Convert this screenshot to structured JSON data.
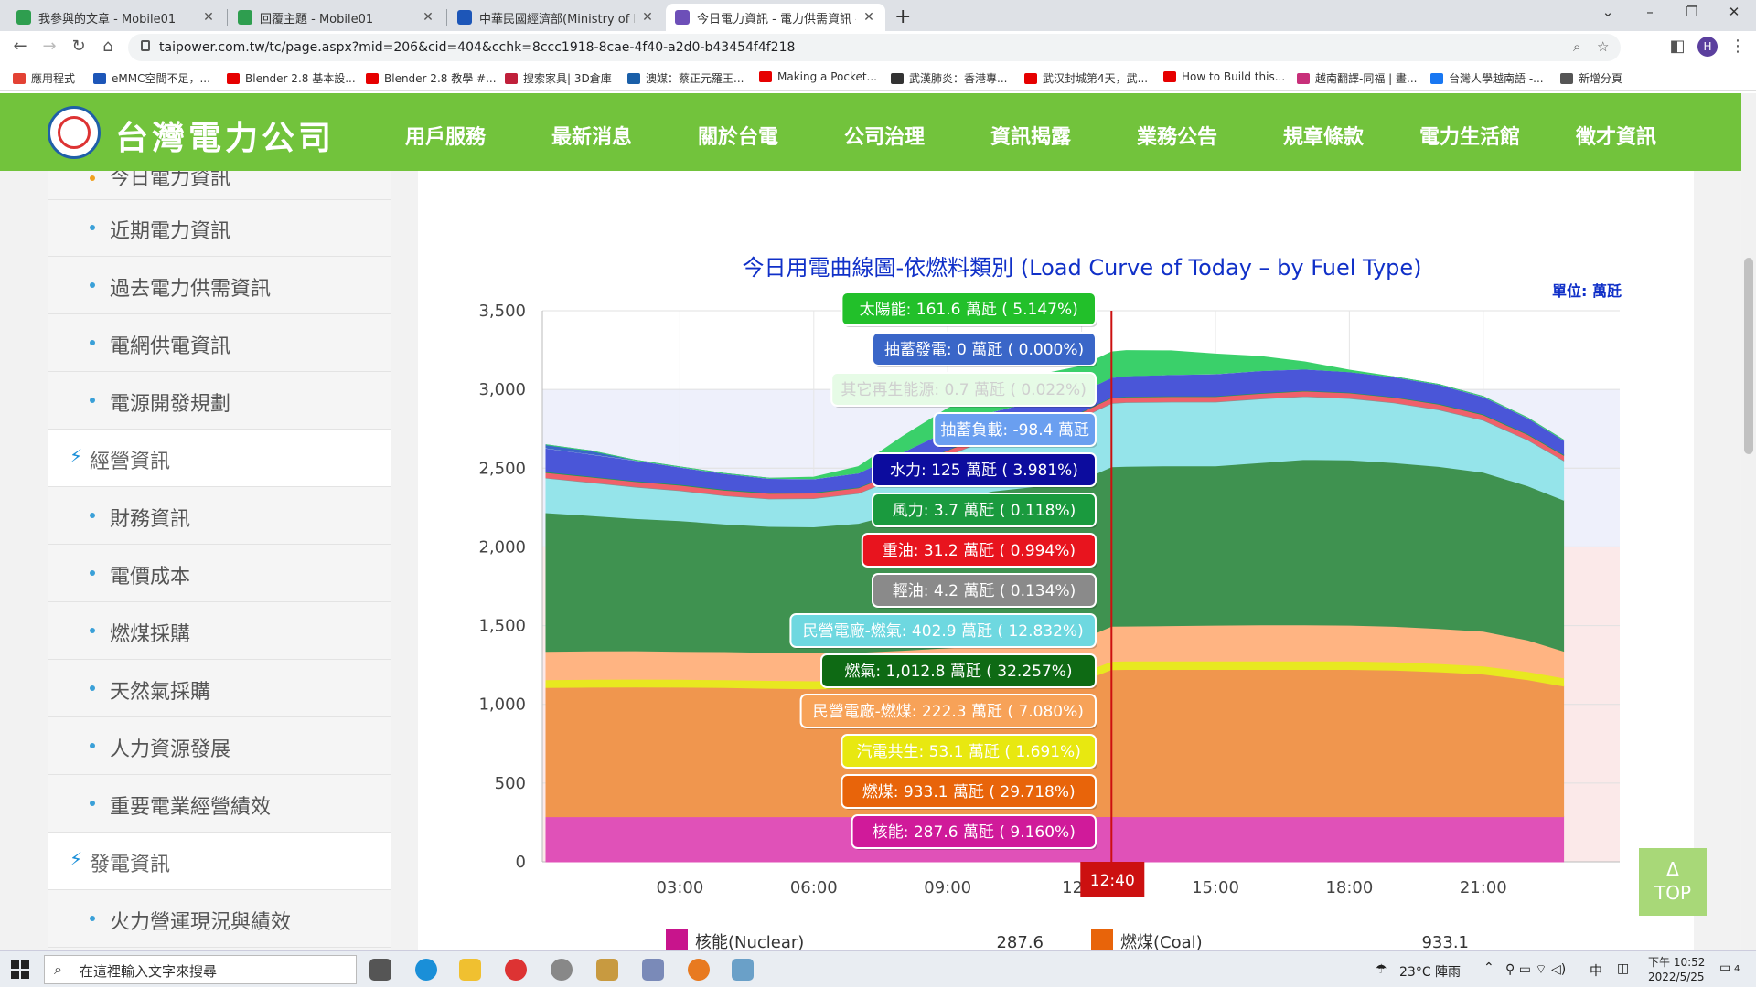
{
  "browser": {
    "tabs": [
      {
        "title": "我參與的文章 - Mobile01",
        "color": "#2e9e4f"
      },
      {
        "title": "回覆主題 - Mobile01",
        "color": "#2e9e4f"
      },
      {
        "title": "中華民國經濟部(Ministry of Econ",
        "color": "#1d56b8"
      },
      {
        "title": "今日電力資訊 - 電力供需資訊 - 資",
        "color": "#6d4fb8"
      }
    ],
    "url": "taipower.com.tw/tc/page.aspx?mid=206&cid=404&cchk=8ccc1918-8cae-4f40-a2d0-b43454f4f218",
    "profile_initial": "H",
    "bookmarks": [
      {
        "label": "應用程式",
        "color": "#e34234"
      },
      {
        "label": "eMMC空間不足，...",
        "color": "#1d56b8"
      },
      {
        "label": "Blender 2.8 基本設...",
        "color": "#e60000"
      },
      {
        "label": "Blender 2.8 教學 #...",
        "color": "#e60000"
      },
      {
        "label": "搜索家具| 3D倉庫",
        "color": "#c0203a"
      },
      {
        "label": "澳媒：蔡正元羅王...",
        "color": "#1a5fa8"
      },
      {
        "label": "Making a Pocket...",
        "color": "#e60000"
      },
      {
        "label": "武漢肺炎：香港專...",
        "color": "#333333"
      },
      {
        "label": "武汉封城第4天，武...",
        "color": "#e60000"
      },
      {
        "label": "How to Build this...",
        "color": "#e60000"
      },
      {
        "label": "越南翻譯-同福 | 畫...",
        "color": "#c8307a"
      },
      {
        "label": "台灣人學越南語 -...",
        "color": "#1877f2"
      },
      {
        "label": "新增分頁",
        "color": "#555555"
      }
    ]
  },
  "site": {
    "logo_text": "台灣電力公司",
    "nav": [
      "用戶服務",
      "最新消息",
      "關於台電",
      "公司治理",
      "資訊揭露",
      "業務公告",
      "規章條款",
      "電力生活館",
      "徵才資訊"
    ]
  },
  "sidebar": {
    "partial_top": "今日電力資訊",
    "items": [
      {
        "label": "近期電力資訊",
        "type": "sub"
      },
      {
        "label": "過去電力供需資訊",
        "type": "sub"
      },
      {
        "label": "電網供電資訊",
        "type": "sub"
      },
      {
        "label": "電源開發規劃",
        "type": "sub"
      },
      {
        "label": "經營資訊",
        "type": "head"
      },
      {
        "label": "財務資訊",
        "type": "sub"
      },
      {
        "label": "電價成本",
        "type": "sub"
      },
      {
        "label": "燃煤採購",
        "type": "sub"
      },
      {
        "label": "天然氣採購",
        "type": "sub"
      },
      {
        "label": "人力資源發展",
        "type": "sub"
      },
      {
        "label": "重要電業經營績效",
        "type": "sub"
      },
      {
        "label": "發電資訊",
        "type": "head"
      },
      {
        "label": "火力營運現況與績效",
        "type": "sub"
      }
    ]
  },
  "chart_data": {
    "type": "area",
    "title": "今日用電曲線圖-依燃料類別 (Load Curve of Today – by Fuel Type)",
    "unit_label": "單位: 萬瓩",
    "y_ticks": [
      "3,500",
      "3,000",
      "2,500",
      "2,000",
      "1,500",
      "1,000",
      "500",
      "0"
    ],
    "x_ticks": [
      "03:00",
      "06:00",
      "09:00",
      "12",
      "15:00",
      "18:00",
      "21:00"
    ],
    "ylim": [
      0,
      3500
    ],
    "cursor_label": "12:40",
    "x_hours": [
      0,
      1,
      2,
      3,
      4,
      5,
      6,
      7,
      8,
      9,
      10,
      11,
      12,
      12.67,
      13,
      14,
      15,
      16,
      17,
      18,
      19,
      20,
      21,
      22,
      22.8
    ],
    "series": [
      {
        "name": "核能(Nuclear)",
        "color": "#e051b8",
        "values": [
          287,
          287,
          287,
          287,
          287,
          287,
          287,
          287,
          287,
          287,
          287,
          287,
          287,
          287.6,
          287,
          287,
          287,
          287,
          287,
          287,
          287,
          287,
          287,
          287,
          287
        ]
      },
      {
        "name": "燃煤(Coal)",
        "color": "#f0964e",
        "values": [
          820,
          822,
          823,
          822,
          820,
          815,
          812,
          815,
          820,
          825,
          830,
          835,
          860,
          933,
          935,
          935,
          935,
          935,
          935,
          935,
          930,
          920,
          905,
          870,
          830
        ]
      },
      {
        "name": "汽電共生",
        "color": "#e8e820",
        "values": [
          50,
          50,
          50,
          50,
          50,
          50,
          50,
          50,
          51,
          52,
          52,
          53,
          53,
          53.1,
          53,
          53,
          53,
          53,
          53,
          53,
          53,
          52,
          52,
          51,
          51
        ]
      },
      {
        "name": "民營電廠-燃煤",
        "color": "#ffb482",
        "values": [
          180,
          180,
          180,
          178,
          178,
          178,
          178,
          178,
          185,
          195,
          205,
          210,
          215,
          222.3,
          222,
          225,
          228,
          230,
          230,
          228,
          225,
          222,
          220,
          200,
          170
        ]
      },
      {
        "name": "燃氣",
        "color": "#3f9250",
        "values": [
          880,
          860,
          840,
          830,
          810,
          800,
          800,
          820,
          880,
          930,
          980,
          1000,
          1010,
          1012.8,
          1015,
          1015,
          1012,
          1030,
          1050,
          1050,
          1040,
          1030,
          1010,
          980,
          960
        ]
      },
      {
        "name": "民營電廠-燃氣",
        "color": "#95e4ea",
        "values": [
          220,
          210,
          200,
          190,
          180,
          175,
          180,
          190,
          230,
          290,
          340,
          380,
          395,
          402.9,
          405,
          405,
          405,
          405,
          400,
          390,
          380,
          360,
          330,
          290,
          250
        ]
      },
      {
        "name": "輕油",
        "color": "#8e8e8e",
        "values": [
          4,
          4,
          4,
          4,
          4,
          4,
          4,
          4,
          4,
          4,
          4,
          4,
          4,
          4.2,
          4,
          4,
          4,
          4,
          4,
          4,
          4,
          4,
          4,
          4,
          4
        ]
      },
      {
        "name": "重油",
        "color": "#f0606a",
        "values": [
          31,
          31,
          31,
          31,
          31,
          31,
          31,
          31,
          31,
          31,
          31,
          31,
          31,
          31.2,
          31,
          31,
          31,
          31,
          31,
          31,
          31,
          31,
          31,
          31,
          31
        ]
      },
      {
        "name": "風力",
        "color": "#1f9a52",
        "values": [
          5,
          5,
          5,
          5,
          5,
          5,
          5,
          4,
          4,
          4,
          4,
          4,
          4,
          3.7,
          4,
          4,
          4,
          4,
          4,
          4,
          4,
          5,
          5,
          5,
          5
        ]
      },
      {
        "name": "水力",
        "color": "#4a56d8",
        "values": [
          150,
          140,
          130,
          110,
          100,
          90,
          85,
          90,
          110,
          120,
          125,
          125,
          125,
          125,
          130,
          135,
          140,
          140,
          135,
          130,
          125,
          120,
          110,
          100,
          90
        ]
      },
      {
        "name": "其它再生能源",
        "color": "#e8f8e8",
        "values": [
          1,
          1,
          1,
          1,
          1,
          1,
          1,
          1,
          1,
          1,
          1,
          1,
          1,
          0.7,
          1,
          1,
          1,
          1,
          1,
          1,
          1,
          1,
          1,
          1,
          1
        ]
      },
      {
        "name": "抽蓄發電",
        "color": "#3a66c8",
        "values": [
          20,
          20,
          0,
          0,
          0,
          0,
          0,
          0,
          0,
          0,
          0,
          0,
          0,
          0,
          0,
          0,
          0,
          0,
          0,
          0,
          0,
          0,
          0,
          0,
          0
        ]
      },
      {
        "name": "太陽能",
        "color": "#3ad06a",
        "values": [
          0,
          0,
          0,
          0,
          0,
          0,
          10,
          40,
          100,
          140,
          155,
          160,
          162,
          161.6,
          160,
          150,
          125,
          90,
          45,
          10,
          0,
          0,
          0,
          0,
          0
        ]
      }
    ]
  },
  "tooltips": [
    {
      "text": "太陽能: 161.6 萬瓩 ( 5.147%)",
      "bg": "#22c02a",
      "fg": "#ffffff"
    },
    {
      "text": "抽蓄發電: 0 萬瓩 ( 0.000%)",
      "bg": "#3a66c8",
      "fg": "#ffffff"
    },
    {
      "text": "其它再生能源: 0.7 萬瓩 ( 0.022%)",
      "bg": "#e6fbe6",
      "fg": "#cfcfcf"
    },
    {
      "text": "抽蓄負載: -98.4 萬瓩",
      "bg": "#6a9ff0",
      "fg": "#ffffff"
    },
    {
      "text": "水力: 125 萬瓩 ( 3.981%)",
      "bg": "#0c0c9e",
      "fg": "#ffffff"
    },
    {
      "text": "風力: 3.7 萬瓩 ( 0.118%)",
      "bg": "#1a9a3e",
      "fg": "#ffffff"
    },
    {
      "text": "重油: 31.2 萬瓩 ( 0.994%)",
      "bg": "#e8141e",
      "fg": "#ffffff"
    },
    {
      "text": "輕油: 4.2 萬瓩 ( 0.134%)",
      "bg": "#8a8a8a",
      "fg": "#ffffff"
    },
    {
      "text": "民營電廠-燃氣: 402.9 萬瓩 ( 12.832%)",
      "bg": "#6ed8e0",
      "fg": "#ffffff"
    },
    {
      "text": "燃氣: 1,012.8 萬瓩 ( 32.257%)",
      "bg": "#0e6a14",
      "fg": "#ffffff"
    },
    {
      "text": "民營電廠-燃煤: 222.3 萬瓩 ( 7.080%)",
      "bg": "#f7a258",
      "fg": "#ffffff"
    },
    {
      "text": "汽電共生: 53.1 萬瓩 ( 1.691%)",
      "bg": "#e8e810",
      "fg": "#ffffff"
    },
    {
      "text": "燃煤: 933.1 萬瓩 ( 29.718%)",
      "bg": "#e8640a",
      "fg": "#ffffff"
    },
    {
      "text": "核能: 287.6 萬瓩 ( 9.160%)",
      "bg": "#d01a9a",
      "fg": "#ffffff"
    }
  ],
  "legend": [
    {
      "name": "核能(Nuclear)",
      "value": "287.6",
      "color": "#c8148c"
    },
    {
      "name": "燃煤(Coal)",
      "value": "933.1",
      "color": "#e8640a"
    }
  ],
  "top_button": {
    "arrow": "Δ",
    "label": "TOP"
  },
  "taskbar": {
    "search_placeholder": "在這裡輸入文字來搜尋",
    "weather": "23°C 陣雨",
    "ime": "中",
    "time": "下午 10:52",
    "date": "2022/5/25",
    "notif_count": "4"
  }
}
